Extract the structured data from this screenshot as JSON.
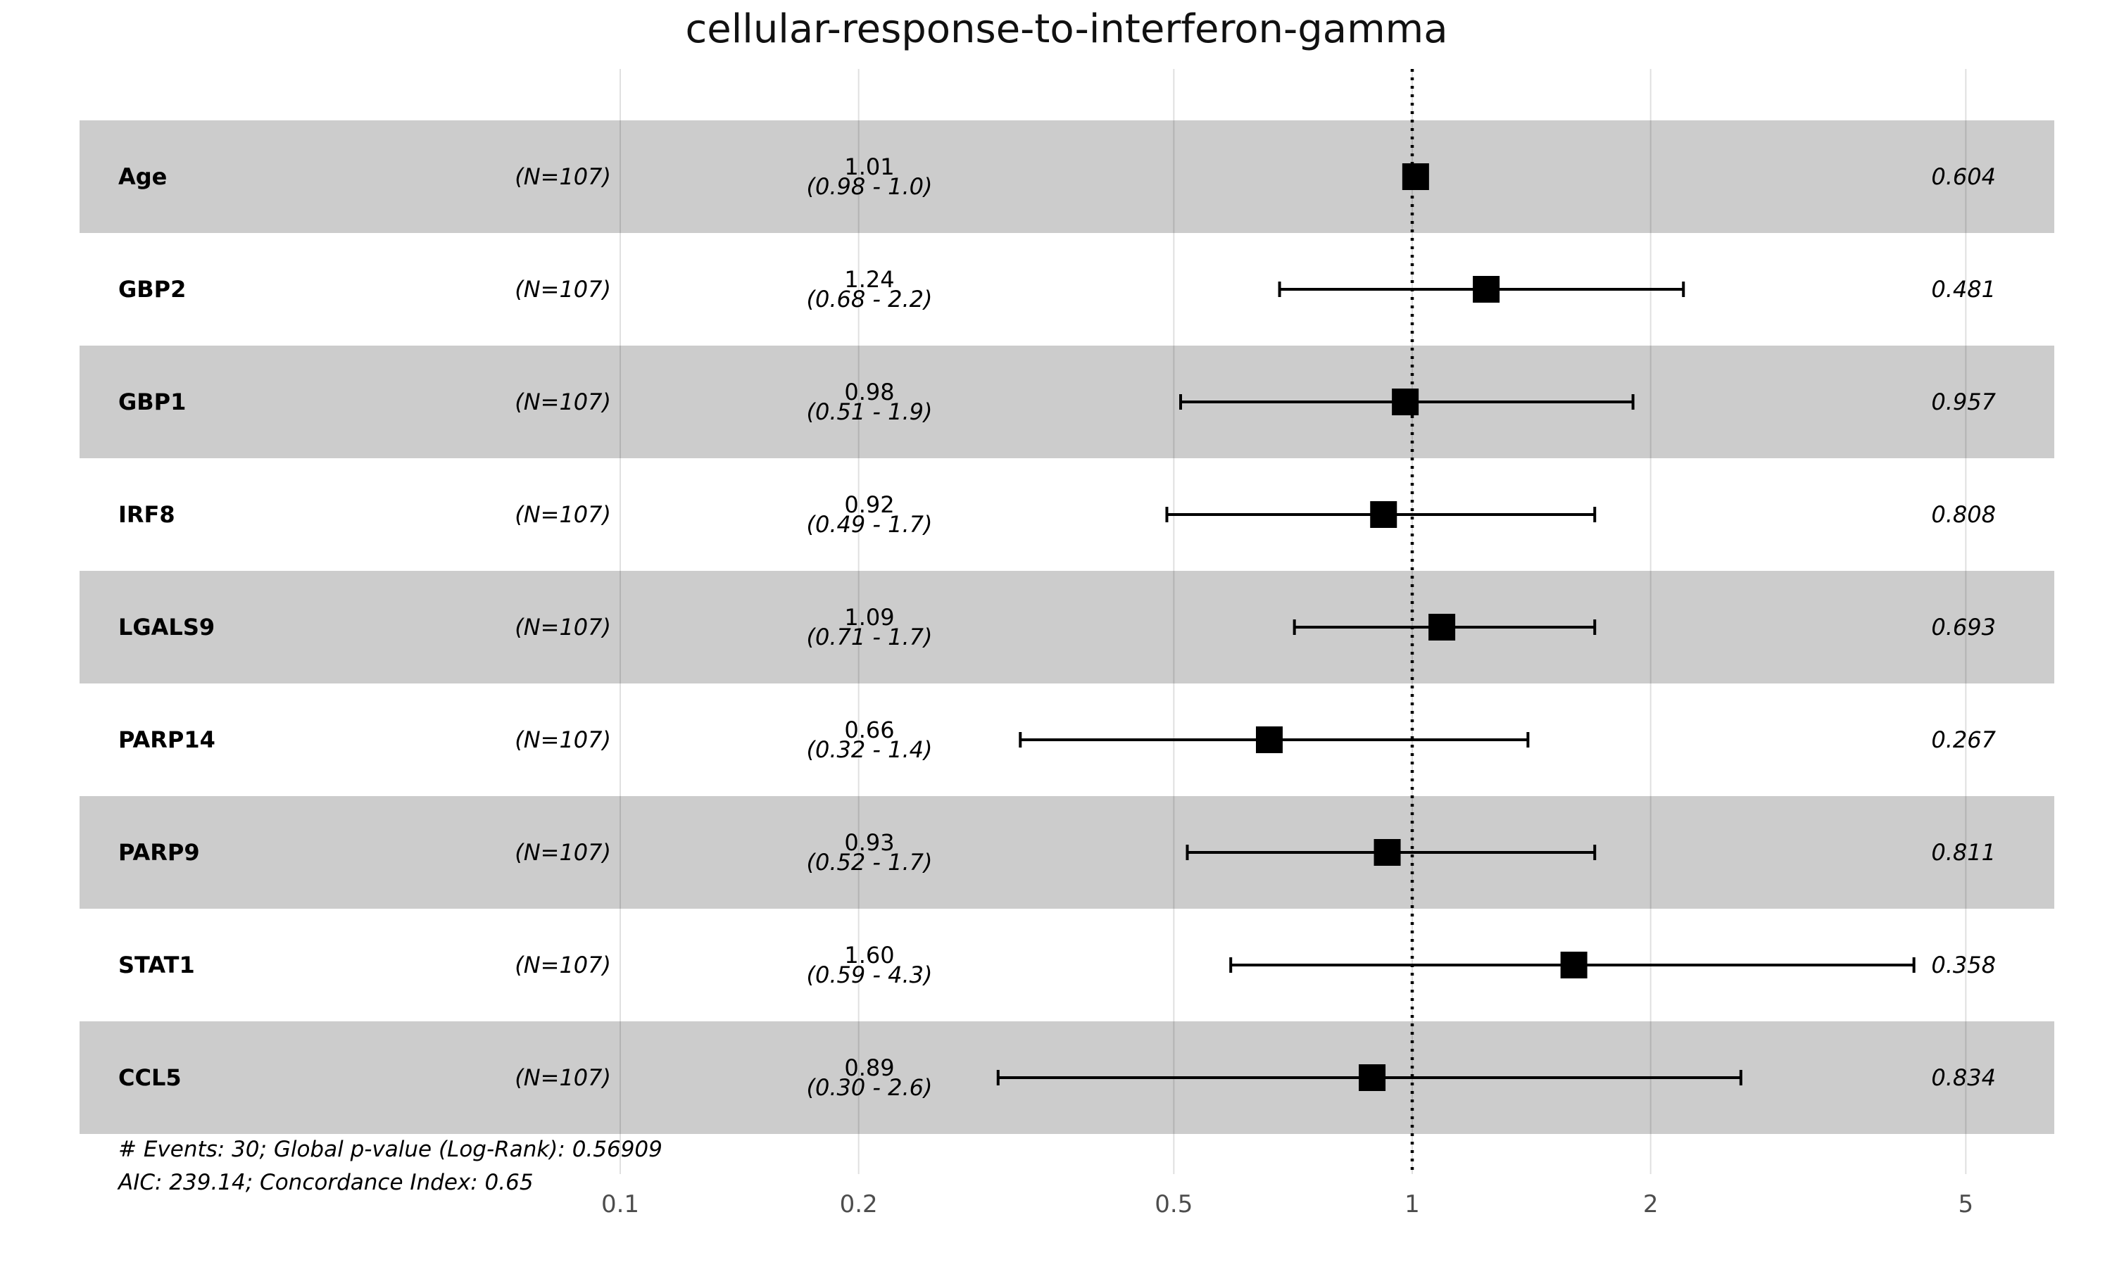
{
  "chart_data": {
    "type": "forest",
    "title": "cellular-response-to-interferon-gamma",
    "x_scale": "log",
    "xlim": [
      0.04,
      6
    ],
    "x_ticks": [
      {
        "value": 0.1,
        "label": "0.1"
      },
      {
        "value": 0.2,
        "label": "0.2"
      },
      {
        "value": 0.5,
        "label": "0.5"
      },
      {
        "value": 1,
        "label": "1"
      },
      {
        "value": 2,
        "label": "2"
      },
      {
        "value": 5,
        "label": "5"
      }
    ],
    "reference_line": 1,
    "grid": true,
    "rows": [
      {
        "variable": "Age",
        "n": "(N=107)",
        "hr": 1.01,
        "hr_label": "1.01",
        "lower": 0.98,
        "upper": 1.0,
        "ci_label": "(0.98 - 1.0)",
        "p_value": "0.604"
      },
      {
        "variable": "GBP2",
        "n": "(N=107)",
        "hr": 1.24,
        "hr_label": "1.24",
        "lower": 0.68,
        "upper": 2.2,
        "ci_label": "(0.68 - 2.2)",
        "p_value": "0.481"
      },
      {
        "variable": "GBP1",
        "n": "(N=107)",
        "hr": 0.98,
        "hr_label": "0.98",
        "lower": 0.51,
        "upper": 1.9,
        "ci_label": "(0.51 - 1.9)",
        "p_value": "0.957"
      },
      {
        "variable": "IRF8",
        "n": "(N=107)",
        "hr": 0.92,
        "hr_label": "0.92",
        "lower": 0.49,
        "upper": 1.7,
        "ci_label": "(0.49 - 1.7)",
        "p_value": "0.808"
      },
      {
        "variable": "LGALS9",
        "n": "(N=107)",
        "hr": 1.09,
        "hr_label": "1.09",
        "lower": 0.71,
        "upper": 1.7,
        "ci_label": "(0.71 - 1.7)",
        "p_value": "0.693"
      },
      {
        "variable": "PARP14",
        "n": "(N=107)",
        "hr": 0.66,
        "hr_label": "0.66",
        "lower": 0.32,
        "upper": 1.4,
        "ci_label": "(0.32 - 1.4)",
        "p_value": "0.267"
      },
      {
        "variable": "PARP9",
        "n": "(N=107)",
        "hr": 0.93,
        "hr_label": "0.93",
        "lower": 0.52,
        "upper": 1.7,
        "ci_label": "(0.52 - 1.7)",
        "p_value": "0.811"
      },
      {
        "variable": "STAT1",
        "n": "(N=107)",
        "hr": 1.6,
        "hr_label": "1.60",
        "lower": 0.59,
        "upper": 4.3,
        "ci_label": "(0.59 - 4.3)",
        "p_value": "0.358"
      },
      {
        "variable": "CCL5",
        "n": "(N=107)",
        "hr": 0.89,
        "hr_label": "0.89",
        "lower": 0.3,
        "upper": 2.6,
        "ci_label": "(0.30 - 2.6)",
        "p_value": "0.834"
      }
    ],
    "footnotes": [
      "# Events: 30; Global p-value (Log-Rank): 0.56909",
      "AIC: 239.14; Concordance Index: 0.65"
    ],
    "colors": {
      "band": "#cccccc",
      "marker": "#000000",
      "grid": "#d9d9d9",
      "reference": "#000000"
    }
  }
}
